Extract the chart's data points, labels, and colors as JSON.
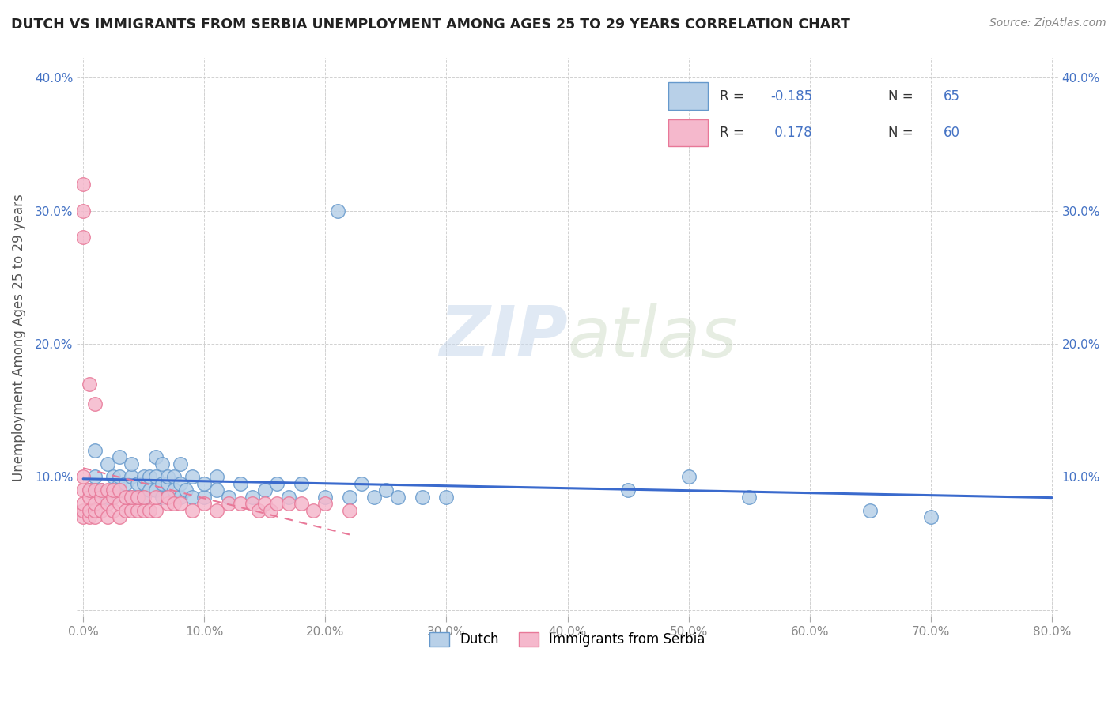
{
  "title": "DUTCH VS IMMIGRANTS FROM SERBIA UNEMPLOYMENT AMONG AGES 25 TO 29 YEARS CORRELATION CHART",
  "source": "Source: ZipAtlas.com",
  "ylabel": "Unemployment Among Ages 25 to 29 years",
  "xlim": [
    -0.005,
    0.805
  ],
  "ylim": [
    -0.005,
    0.415
  ],
  "xticks": [
    0.0,
    0.1,
    0.2,
    0.3,
    0.4,
    0.5,
    0.6,
    0.7,
    0.8
  ],
  "xticklabels": [
    "0.0%",
    "10.0%",
    "20.0%",
    "30.0%",
    "40.0%",
    "50.0%",
    "60.0%",
    "70.0%",
    "80.0%"
  ],
  "yticks": [
    0.0,
    0.1,
    0.2,
    0.3,
    0.4
  ],
  "yticklabels_left": [
    "",
    "10.0%",
    "20.0%",
    "30.0%",
    "40.0%"
  ],
  "yticklabels_right": [
    "",
    "10.0%",
    "20.0%",
    "30.0%",
    "40.0%"
  ],
  "dutch_fill": "#b8d0e8",
  "dutch_edge": "#6699cc",
  "serbia_fill": "#f5b8cc",
  "serbia_edge": "#e87898",
  "dutch_line_color": "#3a6acd",
  "serbia_line_color": "#e87898",
  "dutch_R": -0.185,
  "dutch_N": 65,
  "serbia_R": 0.178,
  "serbia_N": 60,
  "watermark_zip": "ZIP",
  "watermark_atlas": "atlas",
  "tick_color": "#888888",
  "grid_color": "#cccccc",
  "dutch_x": [
    0.005,
    0.01,
    0.01,
    0.015,
    0.02,
    0.02,
    0.025,
    0.025,
    0.03,
    0.03,
    0.03,
    0.035,
    0.035,
    0.04,
    0.04,
    0.04,
    0.045,
    0.045,
    0.05,
    0.05,
    0.05,
    0.055,
    0.055,
    0.06,
    0.06,
    0.06,
    0.065,
    0.065,
    0.065,
    0.07,
    0.07,
    0.07,
    0.075,
    0.075,
    0.08,
    0.08,
    0.08,
    0.085,
    0.09,
    0.09,
    0.1,
    0.1,
    0.11,
    0.11,
    0.12,
    0.13,
    0.14,
    0.15,
    0.16,
    0.17,
    0.18,
    0.2,
    0.21,
    0.22,
    0.23,
    0.24,
    0.25,
    0.26,
    0.28,
    0.3,
    0.45,
    0.5,
    0.55,
    0.65,
    0.7
  ],
  "dutch_y": [
    0.09,
    0.1,
    0.12,
    0.09,
    0.11,
    0.085,
    0.1,
    0.085,
    0.095,
    0.1,
    0.115,
    0.085,
    0.095,
    0.085,
    0.1,
    0.11,
    0.085,
    0.095,
    0.085,
    0.095,
    0.1,
    0.09,
    0.1,
    0.09,
    0.1,
    0.115,
    0.085,
    0.095,
    0.11,
    0.085,
    0.095,
    0.1,
    0.09,
    0.1,
    0.085,
    0.095,
    0.11,
    0.09,
    0.085,
    0.1,
    0.085,
    0.095,
    0.09,
    0.1,
    0.085,
    0.095,
    0.085,
    0.09,
    0.095,
    0.085,
    0.095,
    0.085,
    0.3,
    0.085,
    0.095,
    0.085,
    0.09,
    0.085,
    0.085,
    0.085,
    0.09,
    0.1,
    0.085,
    0.075,
    0.07
  ],
  "serbia_x": [
    0.0,
    0.0,
    0.0,
    0.0,
    0.0,
    0.0,
    0.0,
    0.0,
    0.005,
    0.005,
    0.005,
    0.005,
    0.005,
    0.01,
    0.01,
    0.01,
    0.01,
    0.01,
    0.015,
    0.015,
    0.015,
    0.02,
    0.02,
    0.02,
    0.025,
    0.025,
    0.025,
    0.03,
    0.03,
    0.03,
    0.035,
    0.035,
    0.04,
    0.04,
    0.045,
    0.045,
    0.05,
    0.05,
    0.055,
    0.06,
    0.06,
    0.07,
    0.07,
    0.075,
    0.08,
    0.09,
    0.1,
    0.11,
    0.12,
    0.13,
    0.14,
    0.145,
    0.15,
    0.155,
    0.16,
    0.17,
    0.18,
    0.19,
    0.2,
    0.22
  ],
  "serbia_y": [
    0.07,
    0.075,
    0.08,
    0.09,
    0.1,
    0.28,
    0.3,
    0.32,
    0.07,
    0.075,
    0.085,
    0.09,
    0.17,
    0.07,
    0.075,
    0.08,
    0.09,
    0.155,
    0.075,
    0.085,
    0.09,
    0.07,
    0.08,
    0.09,
    0.075,
    0.085,
    0.09,
    0.07,
    0.08,
    0.09,
    0.075,
    0.085,
    0.075,
    0.085,
    0.075,
    0.085,
    0.075,
    0.085,
    0.075,
    0.075,
    0.085,
    0.08,
    0.085,
    0.08,
    0.08,
    0.075,
    0.08,
    0.075,
    0.08,
    0.08,
    0.08,
    0.075,
    0.08,
    0.075,
    0.08,
    0.08,
    0.08,
    0.075,
    0.08,
    0.075
  ]
}
